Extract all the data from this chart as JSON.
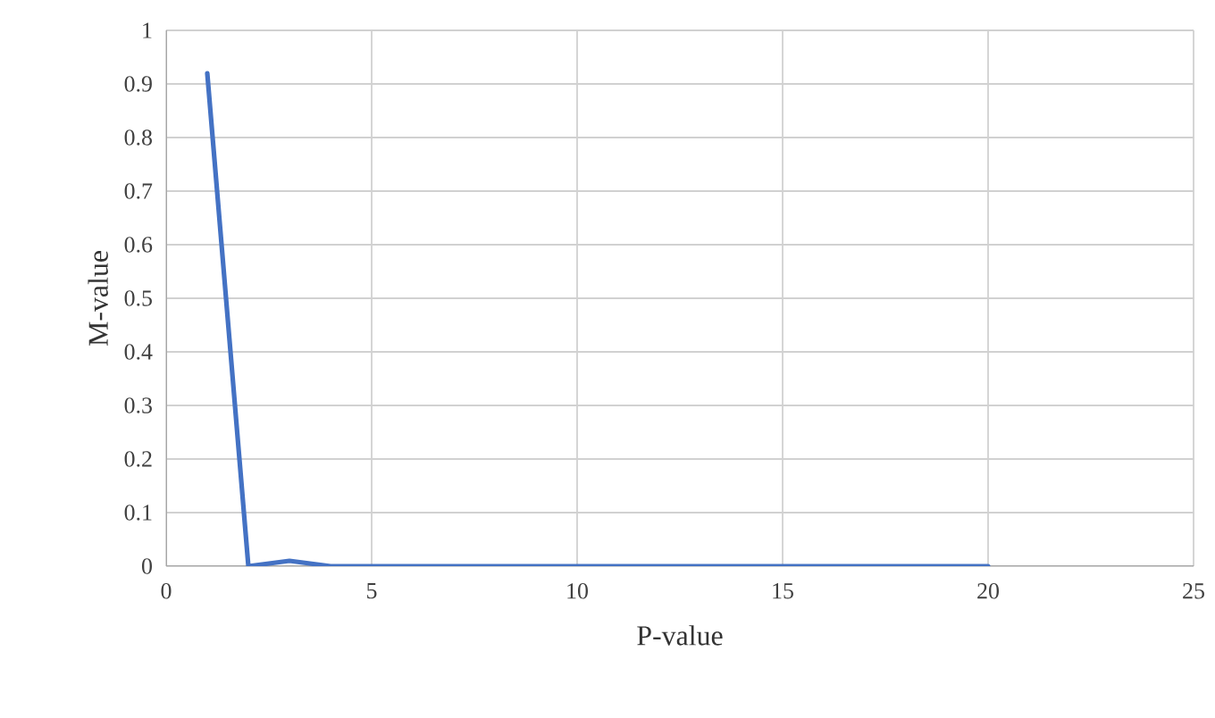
{
  "chart_data": {
    "type": "line",
    "xlabel": "P-value",
    "ylabel": "M-value",
    "x": [
      1,
      2,
      3,
      4,
      5,
      6,
      7,
      8,
      9,
      10,
      11,
      12,
      13,
      14,
      15,
      16,
      17,
      18,
      19,
      20
    ],
    "series": [
      {
        "color": "#4472c4",
        "values": [
          0.92,
          0,
          0.01,
          0,
          0,
          0,
          0,
          0,
          0,
          0,
          0,
          0,
          0,
          0,
          0,
          0,
          0,
          0,
          0,
          0
        ]
      }
    ],
    "xlim": [
      0,
      25
    ],
    "ylim": [
      0,
      1
    ],
    "xticks": [
      0,
      5,
      10,
      15,
      20,
      25
    ],
    "yticks": [
      0,
      0.1,
      0.2,
      0.3,
      0.4,
      0.5,
      0.6,
      0.7,
      0.8,
      0.9,
      1
    ],
    "grid": true,
    "marker": "none",
    "line_style": "solid"
  }
}
